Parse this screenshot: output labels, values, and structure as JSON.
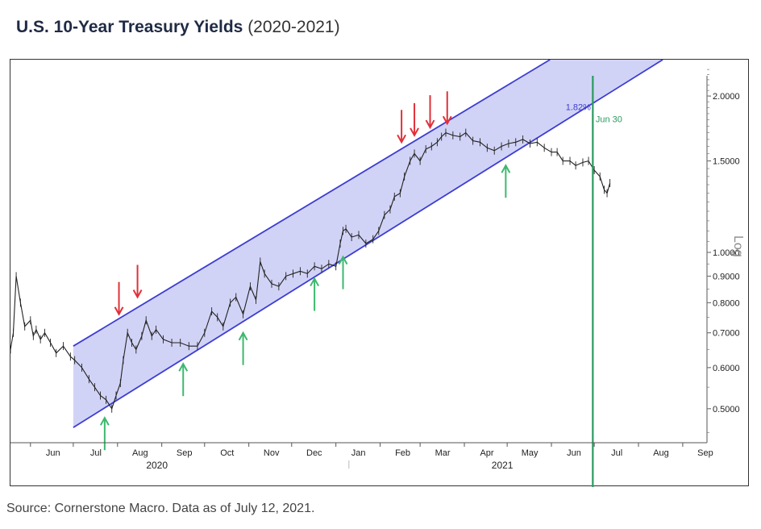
{
  "title": {
    "main": "U.S. 10-Year Treasury Yields",
    "sub": "(2020-2021)"
  },
  "source": "Source: Cornerstone Macro. Data as of July 12, 2021.",
  "chart_data": {
    "type": "line",
    "title": "U.S. 10-Year Treasury Yields (2020-2021)",
    "xlabel": "",
    "ylabel": "Log",
    "yscale": "log",
    "ylim": [
      0.43,
      2.35
    ],
    "xlim": [
      "2020-05-18",
      "2021-09-18"
    ],
    "x_tick_labels": [
      "Jun",
      "Jul",
      "Aug",
      "Sep",
      "Oct",
      "Nov",
      "Dec",
      "Jan",
      "Feb",
      "Mar",
      "Apr",
      "May",
      "Jun",
      "Jul",
      "Aug",
      "Sep"
    ],
    "x_tick_dates": [
      "2020-06-01",
      "2020-07-01",
      "2020-08-01",
      "2020-09-01",
      "2020-10-01",
      "2020-11-01",
      "2020-12-01",
      "2021-01-01",
      "2021-02-01",
      "2021-03-01",
      "2021-04-01",
      "2021-05-01",
      "2021-06-01",
      "2021-07-01",
      "2021-08-01",
      "2021-09-01"
    ],
    "year_labels": [
      {
        "text": "2020",
        "date": "2020-09-01"
      },
      {
        "text": "2021",
        "date": "2021-05-01"
      }
    ],
    "y_tick_labels": [
      "2.0000",
      "1.5000",
      "1.0000",
      "0.9000",
      "0.8000",
      "0.7000",
      "0.6000",
      "0.5000"
    ],
    "y_ticks": [
      2.0,
      1.5,
      1.0,
      0.9,
      0.8,
      0.7,
      0.6,
      0.5
    ],
    "grid": false,
    "series": [
      {
        "color": "#222222",
        "x": [
          "2020-05-18",
          "2020-05-20",
          "2020-05-22",
          "2020-05-25",
          "2020-05-28",
          "2020-06-01",
          "2020-06-03",
          "2020-06-05",
          "2020-06-08",
          "2020-06-11",
          "2020-06-15",
          "2020-06-19",
          "2020-06-24",
          "2020-06-29",
          "2020-07-02",
          "2020-07-07",
          "2020-07-12",
          "2020-07-16",
          "2020-07-20",
          "2020-07-24",
          "2020-07-28",
          "2020-07-31",
          "2020-08-03",
          "2020-08-05",
          "2020-08-08",
          "2020-08-11",
          "2020-08-14",
          "2020-08-18",
          "2020-08-21",
          "2020-08-25",
          "2020-08-28",
          "2020-09-02",
          "2020-09-08",
          "2020-09-14",
          "2020-09-20",
          "2020-09-26",
          "2020-10-01",
          "2020-10-06",
          "2020-10-10",
          "2020-10-14",
          "2020-10-19",
          "2020-10-23",
          "2020-10-28",
          "2020-11-02",
          "2020-11-06",
          "2020-11-09",
          "2020-11-12",
          "2020-11-17",
          "2020-11-22",
          "2020-11-27",
          "2020-12-02",
          "2020-12-07",
          "2020-12-12",
          "2020-12-17",
          "2020-12-22",
          "2020-12-27",
          "2021-01-01",
          "2021-01-04",
          "2021-01-06",
          "2021-01-08",
          "2021-01-12",
          "2021-01-17",
          "2021-01-22",
          "2021-01-27",
          "2021-01-31",
          "2021-02-04",
          "2021-02-08",
          "2021-02-11",
          "2021-02-15",
          "2021-02-18",
          "2021-02-22",
          "2021-02-25",
          "2021-03-01",
          "2021-03-05",
          "2021-03-09",
          "2021-03-13",
          "2021-03-16",
          "2021-03-19",
          "2021-03-24",
          "2021-03-29",
          "2021-04-02",
          "2021-04-07",
          "2021-04-12",
          "2021-04-17",
          "2021-04-22",
          "2021-04-27",
          "2021-05-02",
          "2021-05-07",
          "2021-05-12",
          "2021-05-17",
          "2021-05-22",
          "2021-05-27",
          "2021-06-01",
          "2021-06-05",
          "2021-06-09",
          "2021-06-14",
          "2021-06-18",
          "2021-06-23",
          "2021-06-27",
          "2021-07-01",
          "2021-07-05",
          "2021-07-08",
          "2021-07-10",
          "2021-07-12"
        ],
        "values": [
          0.65,
          0.7,
          0.9,
          0.8,
          0.72,
          0.74,
          0.69,
          0.71,
          0.68,
          0.7,
          0.67,
          0.64,
          0.66,
          0.63,
          0.62,
          0.6,
          0.57,
          0.55,
          0.53,
          0.52,
          0.5,
          0.53,
          0.56,
          0.62,
          0.7,
          0.67,
          0.65,
          0.69,
          0.74,
          0.69,
          0.71,
          0.68,
          0.67,
          0.67,
          0.66,
          0.66,
          0.7,
          0.77,
          0.75,
          0.72,
          0.8,
          0.82,
          0.76,
          0.86,
          0.81,
          0.96,
          0.91,
          0.87,
          0.86,
          0.9,
          0.91,
          0.92,
          0.91,
          0.94,
          0.93,
          0.95,
          0.94,
          1.04,
          1.1,
          1.11,
          1.07,
          1.08,
          1.04,
          1.06,
          1.1,
          1.18,
          1.21,
          1.28,
          1.3,
          1.4,
          1.5,
          1.55,
          1.5,
          1.58,
          1.6,
          1.63,
          1.67,
          1.7,
          1.68,
          1.67,
          1.7,
          1.64,
          1.63,
          1.59,
          1.57,
          1.6,
          1.62,
          1.63,
          1.65,
          1.62,
          1.63,
          1.59,
          1.56,
          1.56,
          1.5,
          1.5,
          1.47,
          1.49,
          1.5,
          1.44,
          1.4,
          1.32,
          1.3,
          1.36
        ]
      }
    ],
    "channel": {
      "upper": {
        "start": {
          "x": "2020-07-01",
          "y": 0.66
        },
        "end": {
          "x": "2021-05-31",
          "y": 2.35
        }
      },
      "lower": {
        "start": {
          "x": "2020-07-01",
          "y": 0.46
        },
        "end": {
          "x": "2021-08-18",
          "y": 2.35
        }
      },
      "fill": "#c9cbf5",
      "line_color": "#3d3dd2"
    },
    "vertical_line": {
      "x": "2021-06-30",
      "color": "#2a9a5e"
    },
    "annotations": [
      {
        "text": "1.82%",
        "x": "2021-06-11",
        "y": 1.88,
        "color": "#3d3dd2"
      },
      {
        "text": "Jun 30",
        "x": "2021-07-02",
        "y": 1.78,
        "color": "#2a9a5e"
      }
    ],
    "red_arrows": [
      {
        "x": "2020-08-02",
        "y": 0.76
      },
      {
        "x": "2020-08-15",
        "y": 0.82
      },
      {
        "x": "2021-02-16",
        "y": 1.63
      },
      {
        "x": "2021-02-25",
        "y": 1.68
      },
      {
        "x": "2021-03-08",
        "y": 1.74
      },
      {
        "x": "2021-03-20",
        "y": 1.77
      }
    ],
    "green_arrows": [
      {
        "x": "2020-07-23",
        "y": 0.48
      },
      {
        "x": "2020-09-16",
        "y": 0.61
      },
      {
        "x": "2020-10-28",
        "y": 0.7
      },
      {
        "x": "2020-12-17",
        "y": 0.89
      },
      {
        "x": "2021-01-06",
        "y": 0.98
      },
      {
        "x": "2021-04-30",
        "y": 1.47
      }
    ],
    "legend": "none"
  }
}
